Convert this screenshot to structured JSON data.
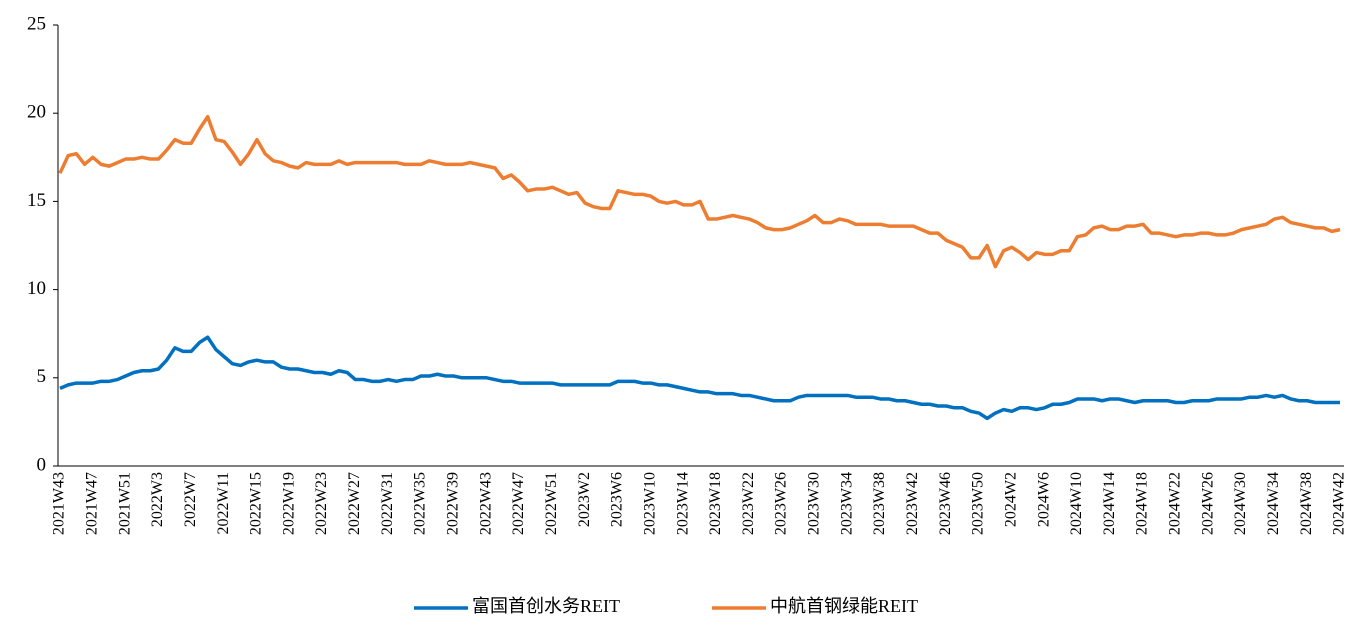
{
  "chart_data": {
    "type": "line",
    "categories": [
      "2021W43",
      null,
      null,
      null,
      "2021W47",
      null,
      null,
      null,
      "2021W51",
      null,
      null,
      null,
      "2022W3",
      null,
      null,
      null,
      "2022W7",
      null,
      null,
      null,
      "2022W11",
      null,
      null,
      null,
      "2022W15",
      null,
      null,
      null,
      "2022W19",
      null,
      null,
      null,
      "2022W23",
      null,
      null,
      null,
      "2022W27",
      null,
      null,
      null,
      "2022W31",
      null,
      null,
      null,
      "2022W35",
      null,
      null,
      null,
      "2022W39",
      null,
      null,
      null,
      "2022W43",
      null,
      null,
      null,
      "2022W47",
      null,
      null,
      null,
      "2022W51",
      null,
      null,
      null,
      "2023W2",
      null,
      null,
      null,
      "2023W6",
      null,
      null,
      null,
      "2023W10",
      null,
      null,
      null,
      "2023W14",
      null,
      null,
      null,
      "2023W18",
      null,
      null,
      null,
      "2023W22",
      null,
      null,
      null,
      "2023W26",
      null,
      null,
      null,
      "2023W30",
      null,
      null,
      null,
      "2023W34",
      null,
      null,
      null,
      "2023W38",
      null,
      null,
      null,
      "2023W42",
      null,
      null,
      null,
      "2023W46",
      null,
      null,
      null,
      "2023W50",
      null,
      null,
      null,
      "2024W2",
      null,
      null,
      null,
      "2024W6",
      null,
      null,
      null,
      "2024W10",
      null,
      null,
      null,
      "2024W14",
      null,
      null,
      null,
      "2024W18",
      null,
      null,
      null,
      "2024W22",
      null,
      null,
      null,
      "2024W26",
      null,
      null,
      null,
      "2024W30",
      null,
      null,
      null,
      "2024W34",
      null,
      null,
      null,
      "2024W38",
      null,
      null,
      null,
      "2024W42"
    ],
    "series": [
      {
        "name": "富国首创水务REIT",
        "color": "#0070c0",
        "values": [
          4.4,
          4.6,
          4.7,
          4.7,
          4.7,
          4.8,
          4.8,
          4.9,
          5.1,
          5.3,
          5.4,
          5.4,
          5.5,
          6.0,
          6.7,
          6.5,
          6.5,
          7.0,
          7.3,
          6.6,
          6.2,
          5.8,
          5.7,
          5.9,
          6.0,
          5.9,
          5.9,
          5.6,
          5.5,
          5.5,
          5.4,
          5.3,
          5.3,
          5.2,
          5.4,
          5.3,
          4.9,
          4.9,
          4.8,
          4.8,
          4.9,
          4.8,
          4.9,
          4.9,
          5.1,
          5.1,
          5.2,
          5.1,
          5.1,
          5.0,
          5.0,
          5.0,
          5.0,
          4.9,
          4.8,
          4.8,
          4.7,
          4.7,
          4.7,
          4.7,
          4.7,
          4.6,
          4.6,
          4.6,
          4.6,
          4.6,
          4.6,
          4.6,
          4.8,
          4.8,
          4.8,
          4.7,
          4.7,
          4.6,
          4.6,
          4.5,
          4.4,
          4.3,
          4.2,
          4.2,
          4.1,
          4.1,
          4.1,
          4.0,
          4.0,
          3.9,
          3.8,
          3.7,
          3.7,
          3.7,
          3.9,
          4.0,
          4.0,
          4.0,
          4.0,
          4.0,
          4.0,
          3.9,
          3.9,
          3.9,
          3.8,
          3.8,
          3.7,
          3.7,
          3.6,
          3.5,
          3.5,
          3.4,
          3.4,
          3.3,
          3.3,
          3.1,
          3.0,
          2.7,
          3.0,
          3.2,
          3.1,
          3.3,
          3.3,
          3.2,
          3.3,
          3.5,
          3.5,
          3.6,
          3.8,
          3.8,
          3.8,
          3.7,
          3.8,
          3.8,
          3.7,
          3.6,
          3.7,
          3.7,
          3.7,
          3.7,
          3.6,
          3.6,
          3.7,
          3.7,
          3.7,
          3.8,
          3.8,
          3.8,
          3.8,
          3.9,
          3.9,
          4.0,
          3.9,
          4.0,
          3.8,
          3.7,
          3.7,
          3.6,
          3.6,
          3.6,
          3.6
        ]
      },
      {
        "name": "中航首钢绿能REIT",
        "color": "#ed7d31",
        "values": [
          16.6,
          17.6,
          17.7,
          17.1,
          17.5,
          17.1,
          17.0,
          17.2,
          17.4,
          17.4,
          17.5,
          17.4,
          17.4,
          17.9,
          18.5,
          18.3,
          18.3,
          19.1,
          19.8,
          18.5,
          18.4,
          17.8,
          17.1,
          17.7,
          18.5,
          17.7,
          17.3,
          17.2,
          17.0,
          16.9,
          17.2,
          17.1,
          17.1,
          17.1,
          17.3,
          17.1,
          17.2,
          17.2,
          17.2,
          17.2,
          17.2,
          17.2,
          17.1,
          17.1,
          17.1,
          17.3,
          17.2,
          17.1,
          17.1,
          17.1,
          17.2,
          17.1,
          17.0,
          16.9,
          16.3,
          16.5,
          16.1,
          15.6,
          15.7,
          15.7,
          15.8,
          15.6,
          15.4,
          15.5,
          14.9,
          14.7,
          14.6,
          14.6,
          15.6,
          15.5,
          15.4,
          15.4,
          15.3,
          15.0,
          14.9,
          15.0,
          14.8,
          14.8,
          15.0,
          14.0,
          14.0,
          14.1,
          14.2,
          14.1,
          14.0,
          13.8,
          13.5,
          13.4,
          13.4,
          13.5,
          13.7,
          13.9,
          14.2,
          13.8,
          13.8,
          14.0,
          13.9,
          13.7,
          13.7,
          13.7,
          13.7,
          13.6,
          13.6,
          13.6,
          13.6,
          13.4,
          13.2,
          13.2,
          12.8,
          12.6,
          12.4,
          11.8,
          11.8,
          12.5,
          11.3,
          12.2,
          12.4,
          12.1,
          11.7,
          12.1,
          12.0,
          12.0,
          12.2,
          12.2,
          13.0,
          13.1,
          13.5,
          13.6,
          13.4,
          13.4,
          13.6,
          13.6,
          13.7,
          13.2,
          13.2,
          13.1,
          13.0,
          13.1,
          13.1,
          13.2,
          13.2,
          13.1,
          13.1,
          13.2,
          13.4,
          13.5,
          13.6,
          13.7,
          14.0,
          14.1,
          13.8,
          13.7,
          13.6,
          13.5,
          13.5,
          13.3,
          13.4
        ]
      }
    ],
    "ylim": [
      0,
      25
    ],
    "yticks": [
      0,
      5,
      10,
      15,
      20,
      25
    ]
  }
}
